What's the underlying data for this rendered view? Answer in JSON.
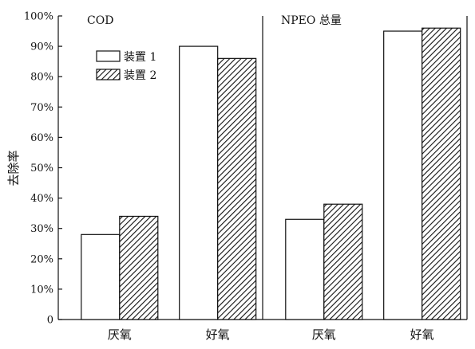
{
  "chart_data": {
    "type": "bar",
    "ylabel": "去除率",
    "ylim": [
      0,
      100
    ],
    "y_ticks": [
      "0",
      "10%",
      "20%",
      "30%",
      "40%",
      "50%",
      "60%",
      "70%",
      "80%",
      "90%",
      "100%"
    ],
    "y_tick_values": [
      0,
      10,
      20,
      30,
      40,
      50,
      60,
      70,
      80,
      90,
      100
    ],
    "legend": {
      "placement": "top-left of first panel",
      "items": [
        {
          "label": "装置 1",
          "pattern": "solid-white"
        },
        {
          "label": "装置 2",
          "pattern": "diagonal-hatch"
        }
      ]
    },
    "panels": [
      {
        "title": "COD",
        "categories": [
          "厌氧",
          "好氧"
        ],
        "series": [
          {
            "name": "装置 1",
            "values": [
              28,
              90
            ]
          },
          {
            "name": "装置 2",
            "values": [
              34,
              86
            ]
          }
        ]
      },
      {
        "title": "NPEO 总量",
        "categories": [
          "厌氧",
          "好氧"
        ],
        "series": [
          {
            "name": "装置 1",
            "values": [
              33,
              95
            ]
          },
          {
            "name": "装置 2",
            "values": [
              38,
              96
            ]
          }
        ]
      }
    ],
    "grid": false,
    "colors": {
      "bar_fill": "#ffffff",
      "stroke": "#111111",
      "hatch": "#111111"
    }
  }
}
